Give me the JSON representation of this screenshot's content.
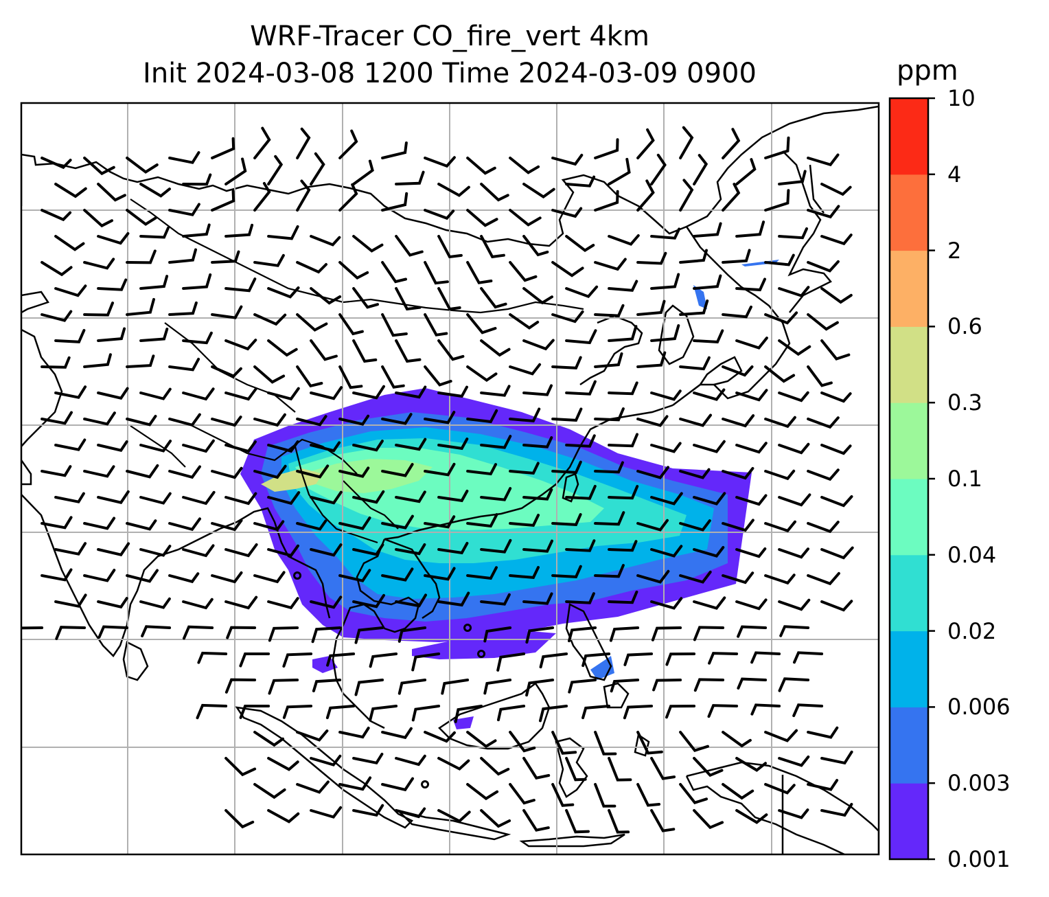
{
  "title": {
    "line1": "WRF-Tracer CO_fire_vert 4km",
    "line2": "Init 2024-03-08 1200 Time 2024-03-09 0900"
  },
  "colorbar": {
    "unit": "ppm",
    "levels": [
      "0.001",
      "0.003",
      "0.006",
      "0.02",
      "0.04",
      "0.1",
      "0.3",
      "0.6",
      "2",
      "4",
      "10"
    ],
    "colors": [
      "#6428fa",
      "#3574f0",
      "#00b2ea",
      "#30dfd2",
      "#6cfcc0",
      "#9cf89a",
      "#d1e086",
      "#fdb065",
      "#fd6f3c",
      "#fc2a16"
    ]
  },
  "map": {
    "gridlines": true,
    "coastlines": true,
    "overlay": "wind-barbs",
    "field": "CO_fire_vert"
  }
}
